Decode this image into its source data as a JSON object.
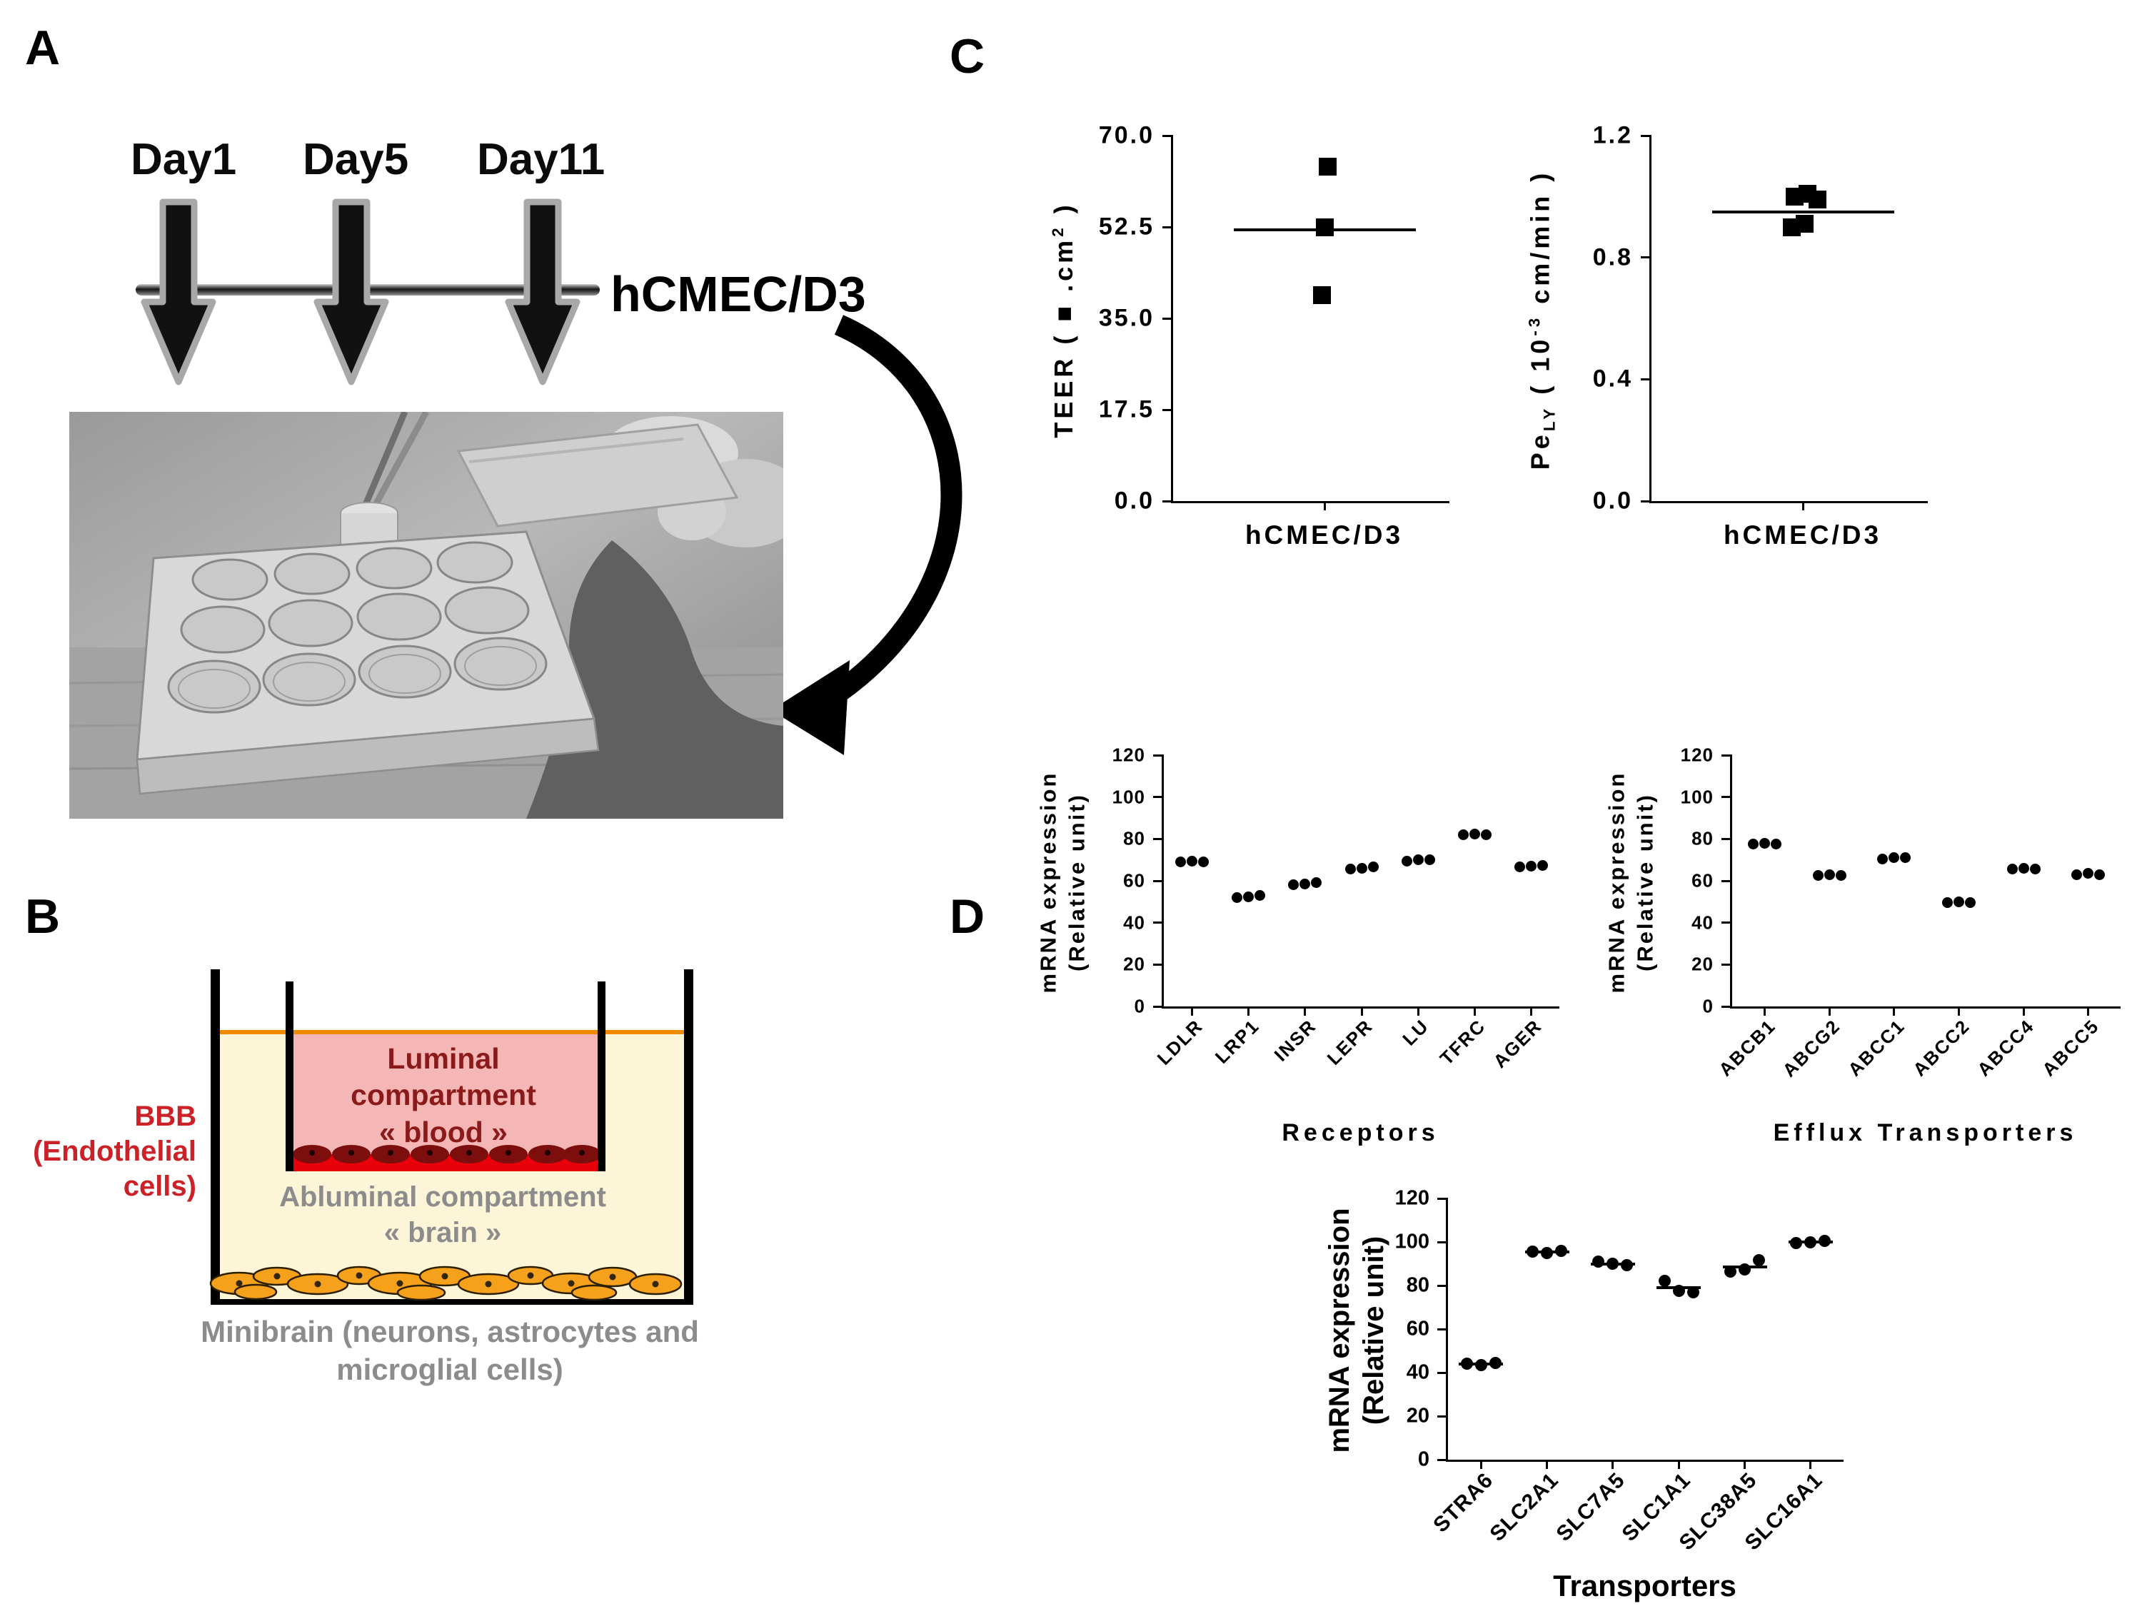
{
  "figure": {
    "panel_a": {
      "label": "A",
      "days": [
        "Day1",
        "Day5",
        "Day11"
      ],
      "cell_line": "hCMEC/D3"
    },
    "panel_b": {
      "label": "B",
      "bbb_lines": [
        "BBB",
        "(Endothelial",
        "cells)"
      ],
      "luminal_lines": [
        "Luminal",
        "compartment",
        "« blood »"
      ],
      "abluminal_lines": [
        "Abluminal compartment",
        "« brain »"
      ],
      "minibrain_lines": [
        "Minibrain (neurons, astrocytes and",
        "microglial cells)"
      ]
    },
    "panel_c": {
      "label": "C"
    },
    "panel_d": {
      "label": "D"
    }
  },
  "colors": {
    "beige": "#fdf5d8",
    "orange_line": "#f08a00",
    "luminal_pink": "#f5b6b6",
    "monolayer_red": "#e8000b",
    "endothelial_dark": "#7c0e0e",
    "minibrain_orange": "#f5a11c",
    "bbb_text_red": "#cb2127",
    "luminal_text_red": "#8b1a1a",
    "gray_text": "#8c8c8c"
  },
  "chart_data": [
    {
      "id": "teer",
      "type": "scatter",
      "ylabel_lines": [
        [
          {
            "t": "TEER ( "
          },
          {
            "t": "■"
          },
          {
            "t": " .cm"
          },
          {
            "t": "2",
            "sup": true
          },
          {
            "t": " )"
          }
        ]
      ],
      "xtitle": "hCMEC/D3",
      "ylim": [
        0,
        70
      ],
      "yticks": [
        0,
        17.5,
        35,
        52.5,
        70
      ],
      "ytick_labels": [
        "0.0",
        "17.5",
        "35.0",
        "52.5",
        "70.0"
      ],
      "marker": "square",
      "marker_size": 25,
      "center_frac": 0.55,
      "clusters": [
        {
          "points": [
            {
              "dx": 4,
              "v": 64
            },
            {
              "dx": 0,
              "v": 52.5
            },
            {
              "dx": -4,
              "v": 39.5
            }
          ],
          "mean": 52,
          "mean_width": 255
        }
      ]
    },
    {
      "id": "pely",
      "type": "scatter",
      "ylabel_lines": [
        [
          {
            "t": "Pe"
          },
          {
            "t": "LY",
            "sub": true
          },
          {
            "t": " ( 10"
          },
          {
            "t": "-3",
            "sup": true
          },
          {
            "t": " cm/min )"
          }
        ]
      ],
      "xtitle": "hCMEC/D3",
      "ylim": [
        0,
        1.2
      ],
      "yticks": [
        0,
        0.4,
        0.8,
        1.2
      ],
      "ytick_labels": [
        "0.0",
        "0.4",
        "0.8",
        "1.2"
      ],
      "marker": "square",
      "marker_size": 25,
      "center_frac": 0.55,
      "clusters": [
        {
          "points": [
            {
              "dx": -12,
              "v": 1.0
            },
            {
              "dx": 6,
              "v": 1.01
            },
            {
              "dx": 20,
              "v": 0.99
            },
            {
              "dx": -16,
              "v": 0.9
            },
            {
              "dx": 2,
              "v": 0.91
            }
          ],
          "mean": 0.95,
          "mean_width": 255
        }
      ]
    },
    {
      "id": "receptors",
      "type": "scatter",
      "ylabel_lines": [
        [
          {
            "t": "mRNA expression"
          }
        ],
        [
          {
            "t": "(Relative unit)"
          }
        ]
      ],
      "xtitle": "Receptors",
      "ylim": [
        0,
        120
      ],
      "yticks": [
        0,
        20,
        40,
        60,
        80,
        100,
        120
      ],
      "ytick_labels": [
        "0",
        "20",
        "40",
        "60",
        "80",
        "100",
        "120"
      ],
      "marker": "circle",
      "marker_size": 15,
      "dot_gap": 16,
      "categories": [
        "LDLR",
        "LRP1",
        "INSR",
        "LEPR",
        "LU",
        "TFRC",
        "AGER"
      ],
      "clusters": [
        {
          "values": [
            69,
            69.5,
            69
          ]
        },
        {
          "values": [
            52,
            52.5,
            53
          ]
        },
        {
          "values": [
            58,
            58.5,
            59
          ]
        },
        {
          "values": [
            65.5,
            66,
            66.5
          ]
        },
        {
          "values": [
            69.5,
            70,
            70
          ]
        },
        {
          "values": [
            82,
            82.5,
            82
          ]
        },
        {
          "values": [
            66.5,
            67,
            67.5
          ]
        }
      ]
    },
    {
      "id": "efflux",
      "type": "scatter",
      "ylabel_lines": [
        [
          {
            "t": "mRNA expression"
          }
        ],
        [
          {
            "t": "(Relative unit)"
          }
        ]
      ],
      "xtitle": "Efflux Transporters",
      "ylim": [
        0,
        120
      ],
      "yticks": [
        0,
        20,
        40,
        60,
        80,
        100,
        120
      ],
      "ytick_labels": [
        "0",
        "20",
        "40",
        "60",
        "80",
        "100",
        "120"
      ],
      "marker": "circle",
      "marker_size": 15,
      "dot_gap": 16,
      "categories": [
        "ABCB1",
        "ABCG2",
        "ABCC1",
        "ABCC2",
        "ABCC4",
        "ABCC5"
      ],
      "clusters": [
        {
          "values": [
            77.5,
            78,
            77.5
          ]
        },
        {
          "values": [
            62.5,
            63,
            62.5
          ]
        },
        {
          "values": [
            70.5,
            71,
            71
          ]
        },
        {
          "values": [
            49.5,
            50,
            49.5
          ]
        },
        {
          "values": [
            65.5,
            66,
            65.5
          ]
        },
        {
          "values": [
            63,
            63.5,
            63
          ]
        }
      ]
    },
    {
      "id": "transporters",
      "type": "scatter",
      "ylabel_lines": [
        [
          {
            "t": "mRNA expression"
          }
        ],
        [
          {
            "t": "(Relative unit)"
          }
        ]
      ],
      "xtitle": "Transporters",
      "ylim": [
        0,
        120
      ],
      "yticks": [
        0,
        20,
        40,
        60,
        80,
        100,
        120
      ],
      "ytick_labels": [
        "0",
        "20",
        "40",
        "60",
        "80",
        "100",
        "120"
      ],
      "marker": "circle",
      "marker_size": 17,
      "dot_gap": 20,
      "categories": [
        "STRA6",
        "SLC2A1",
        "SLC7A5",
        "SLC1A1",
        "SLC38A5",
        "SLC16A1"
      ],
      "clusters": [
        {
          "values": [
            44,
            43.5,
            44.5
          ],
          "mean": 44,
          "mean_width": 62
        },
        {
          "values": [
            95.5,
            95,
            96
          ],
          "mean": 95.5,
          "mean_width": 62
        },
        {
          "values": [
            91,
            90,
            89.5
          ],
          "mean": 90,
          "mean_width": 62
        },
        {
          "values": [
            82,
            77.5,
            77
          ],
          "mean": 79,
          "mean_width": 62
        },
        {
          "values": [
            86.5,
            87.5,
            91.5
          ],
          "mean": 88.5,
          "mean_width": 62
        },
        {
          "values": [
            99.5,
            100,
            100.5
          ],
          "mean": 100,
          "mean_width": 62
        }
      ]
    }
  ]
}
